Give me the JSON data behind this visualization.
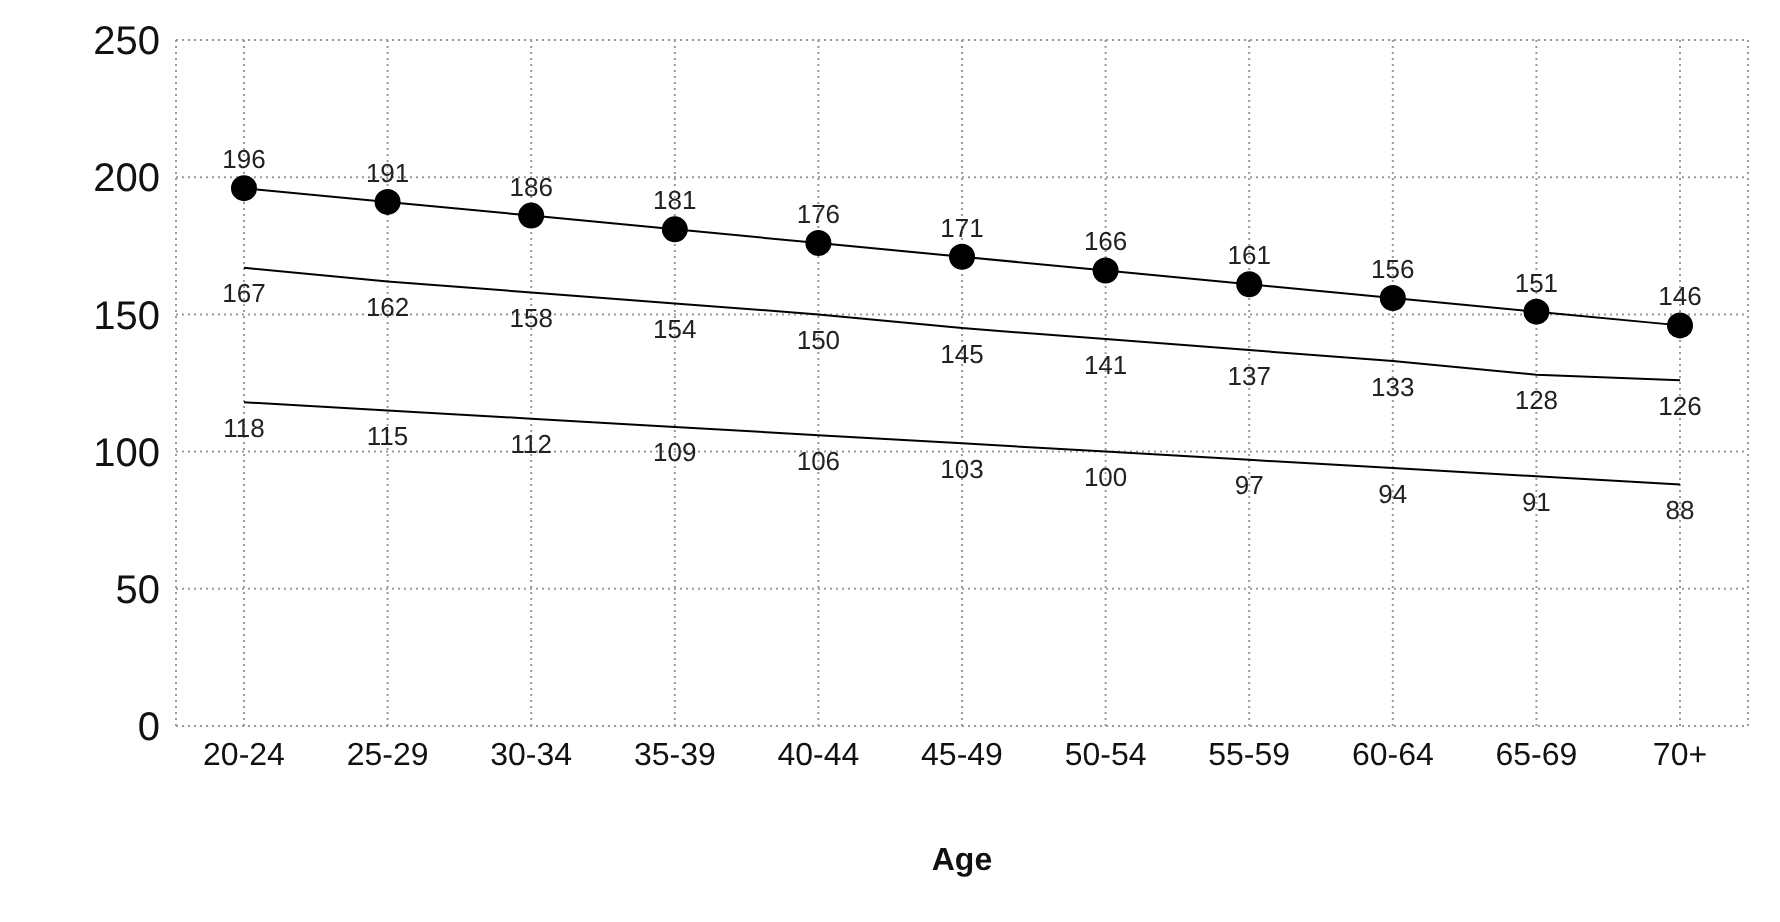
{
  "chart_data": {
    "type": "line",
    "xlabel": "Age",
    "categories": [
      "20-24",
      "25-29",
      "30-34",
      "35-39",
      "40-44",
      "45-49",
      "50-54",
      "55-59",
      "60-64",
      "65-69",
      "70+"
    ],
    "series": [
      {
        "color": "#000000",
        "marker": "circle",
        "values": [
          196,
          191,
          186,
          181,
          176,
          171,
          166,
          161,
          156,
          151,
          146
        ]
      },
      {
        "color": "#000000",
        "marker": "none",
        "values": [
          167,
          162,
          158,
          154,
          150,
          145,
          141,
          137,
          133,
          128,
          126
        ]
      },
      {
        "color": "#000000",
        "marker": "none",
        "values": [
          118,
          115,
          112,
          109,
          106,
          103,
          100,
          97,
          94,
          91,
          88
        ]
      }
    ],
    "ylim": [
      0,
      250
    ],
    "yticks": [
      0,
      50,
      100,
      150,
      200,
      250
    ],
    "grid": true,
    "data_labels": true,
    "line_style": "solid"
  }
}
